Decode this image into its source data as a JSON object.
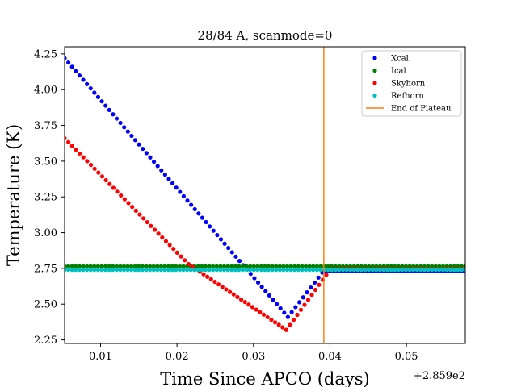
{
  "chart_data": {
    "type": "scatter",
    "title": "28/84 A, scanmode=0",
    "xlabel": "Time Since APCO (days)",
    "ylabel": "Temperature (K)",
    "x_offset_label": "+2.859e2",
    "xlim": [
      0.0053,
      0.0577
    ],
    "ylim": [
      2.225,
      4.3
    ],
    "x_ticks": [
      0.01,
      0.02,
      0.03,
      0.04,
      0.05
    ],
    "x_tick_labels": [
      "0.01",
      "0.02",
      "0.03",
      "0.04",
      "0.05"
    ],
    "y_ticks": [
      2.25,
      2.5,
      2.75,
      3.0,
      3.25,
      3.5,
      3.75,
      4.0,
      4.25
    ],
    "y_tick_labels": [
      "2.25",
      "2.50",
      "2.75",
      "3.00",
      "3.25",
      "3.50",
      "3.75",
      "4.00",
      "4.25"
    ],
    "legend_position": "top-right",
    "series": [
      {
        "name": "Xcal",
        "color": "#0000ff",
        "kind": "points",
        "segments": [
          {
            "x_start": 0.0053,
            "x_end": 0.0345,
            "y_start": 4.22,
            "y_end": 2.41
          },
          {
            "x_start": 0.0345,
            "x_end": 0.039,
            "y_start": 2.41,
            "y_end": 2.72
          },
          {
            "x_start": 0.039,
            "x_end": 0.0577,
            "y_start": 2.73,
            "y_end": 2.73
          }
        ]
      },
      {
        "name": "Ical",
        "color": "#008000",
        "kind": "points",
        "segments": [
          {
            "x_start": 0.0053,
            "x_end": 0.0577,
            "y_start": 2.765,
            "y_end": 2.765
          }
        ]
      },
      {
        "name": "Skyhorn",
        "color": "#ff0000",
        "kind": "points",
        "segments": [
          {
            "x_start": 0.0053,
            "x_end": 0.0215,
            "y_start": 3.66,
            "y_end": 2.78
          },
          {
            "x_start": 0.0215,
            "x_end": 0.0343,
            "y_start": 2.78,
            "y_end": 2.32
          },
          {
            "x_start": 0.0343,
            "x_end": 0.04,
            "y_start": 2.32,
            "y_end": 2.74
          },
          {
            "x_start": 0.04,
            "x_end": 0.0577,
            "y_start": 2.745,
            "y_end": 2.745
          }
        ]
      },
      {
        "name": "Refhorn",
        "color": "#00bfbf",
        "kind": "points",
        "segments": [
          {
            "x_start": 0.0053,
            "x_end": 0.0577,
            "y_start": 2.74,
            "y_end": 2.74
          }
        ]
      },
      {
        "name": "End of Plateau",
        "color": "#ff7f0e",
        "kind": "vline",
        "x": 0.0392
      }
    ]
  }
}
